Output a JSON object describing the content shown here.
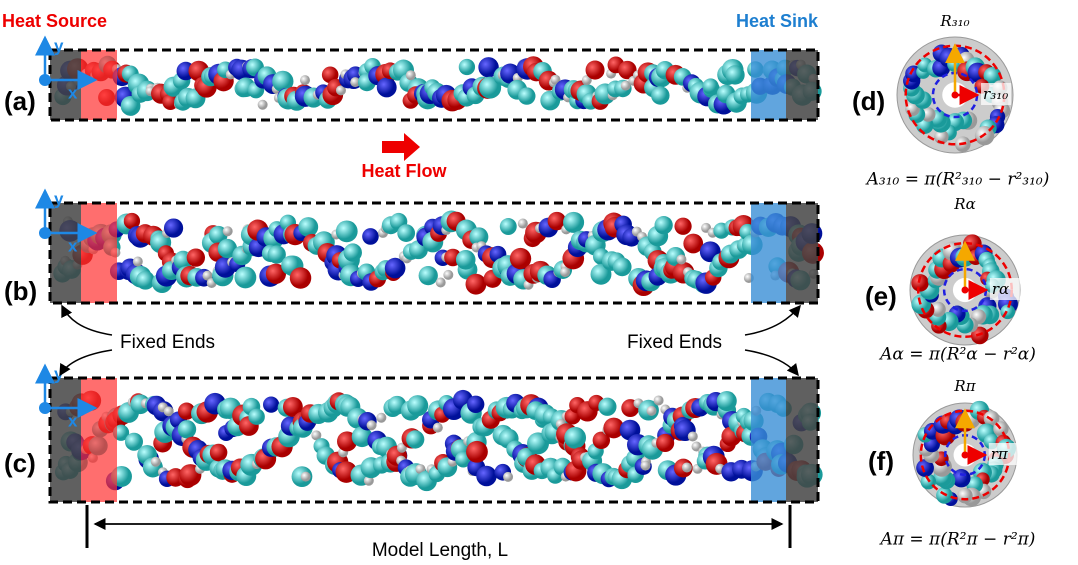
{
  "heat_source": "Heat Source",
  "heat_sink": "Heat Sink",
  "heat_flow": "Heat Flow",
  "fixed_ends": [
    "Fixed Ends",
    "Fixed Ends"
  ],
  "model_length": "Model Length, L",
  "panels": [
    {
      "label": "(a)",
      "axis_x": "x",
      "axis_y": "y"
    },
    {
      "label": "(b)",
      "axis_x": "x",
      "axis_y": "y"
    },
    {
      "label": "(c)",
      "axis_x": "x",
      "axis_y": "y"
    }
  ],
  "cross_sections": [
    {
      "label": "(d)",
      "outer_radius": "R₃₁₀",
      "inner_radius": "r₃₁₀",
      "area": "A₃₁₀ = π(R²₃₁₀ − r²₃₁₀)"
    },
    {
      "label": "(e)",
      "outer_radius": "Rα",
      "inner_radius": "rα",
      "area": "Aα = π(R²α − r²α)"
    },
    {
      "label": "(f)",
      "outer_radius": "Rπ",
      "inner_radius": "rπ",
      "area": "Aπ = π(R²π − r²π)"
    }
  ]
}
